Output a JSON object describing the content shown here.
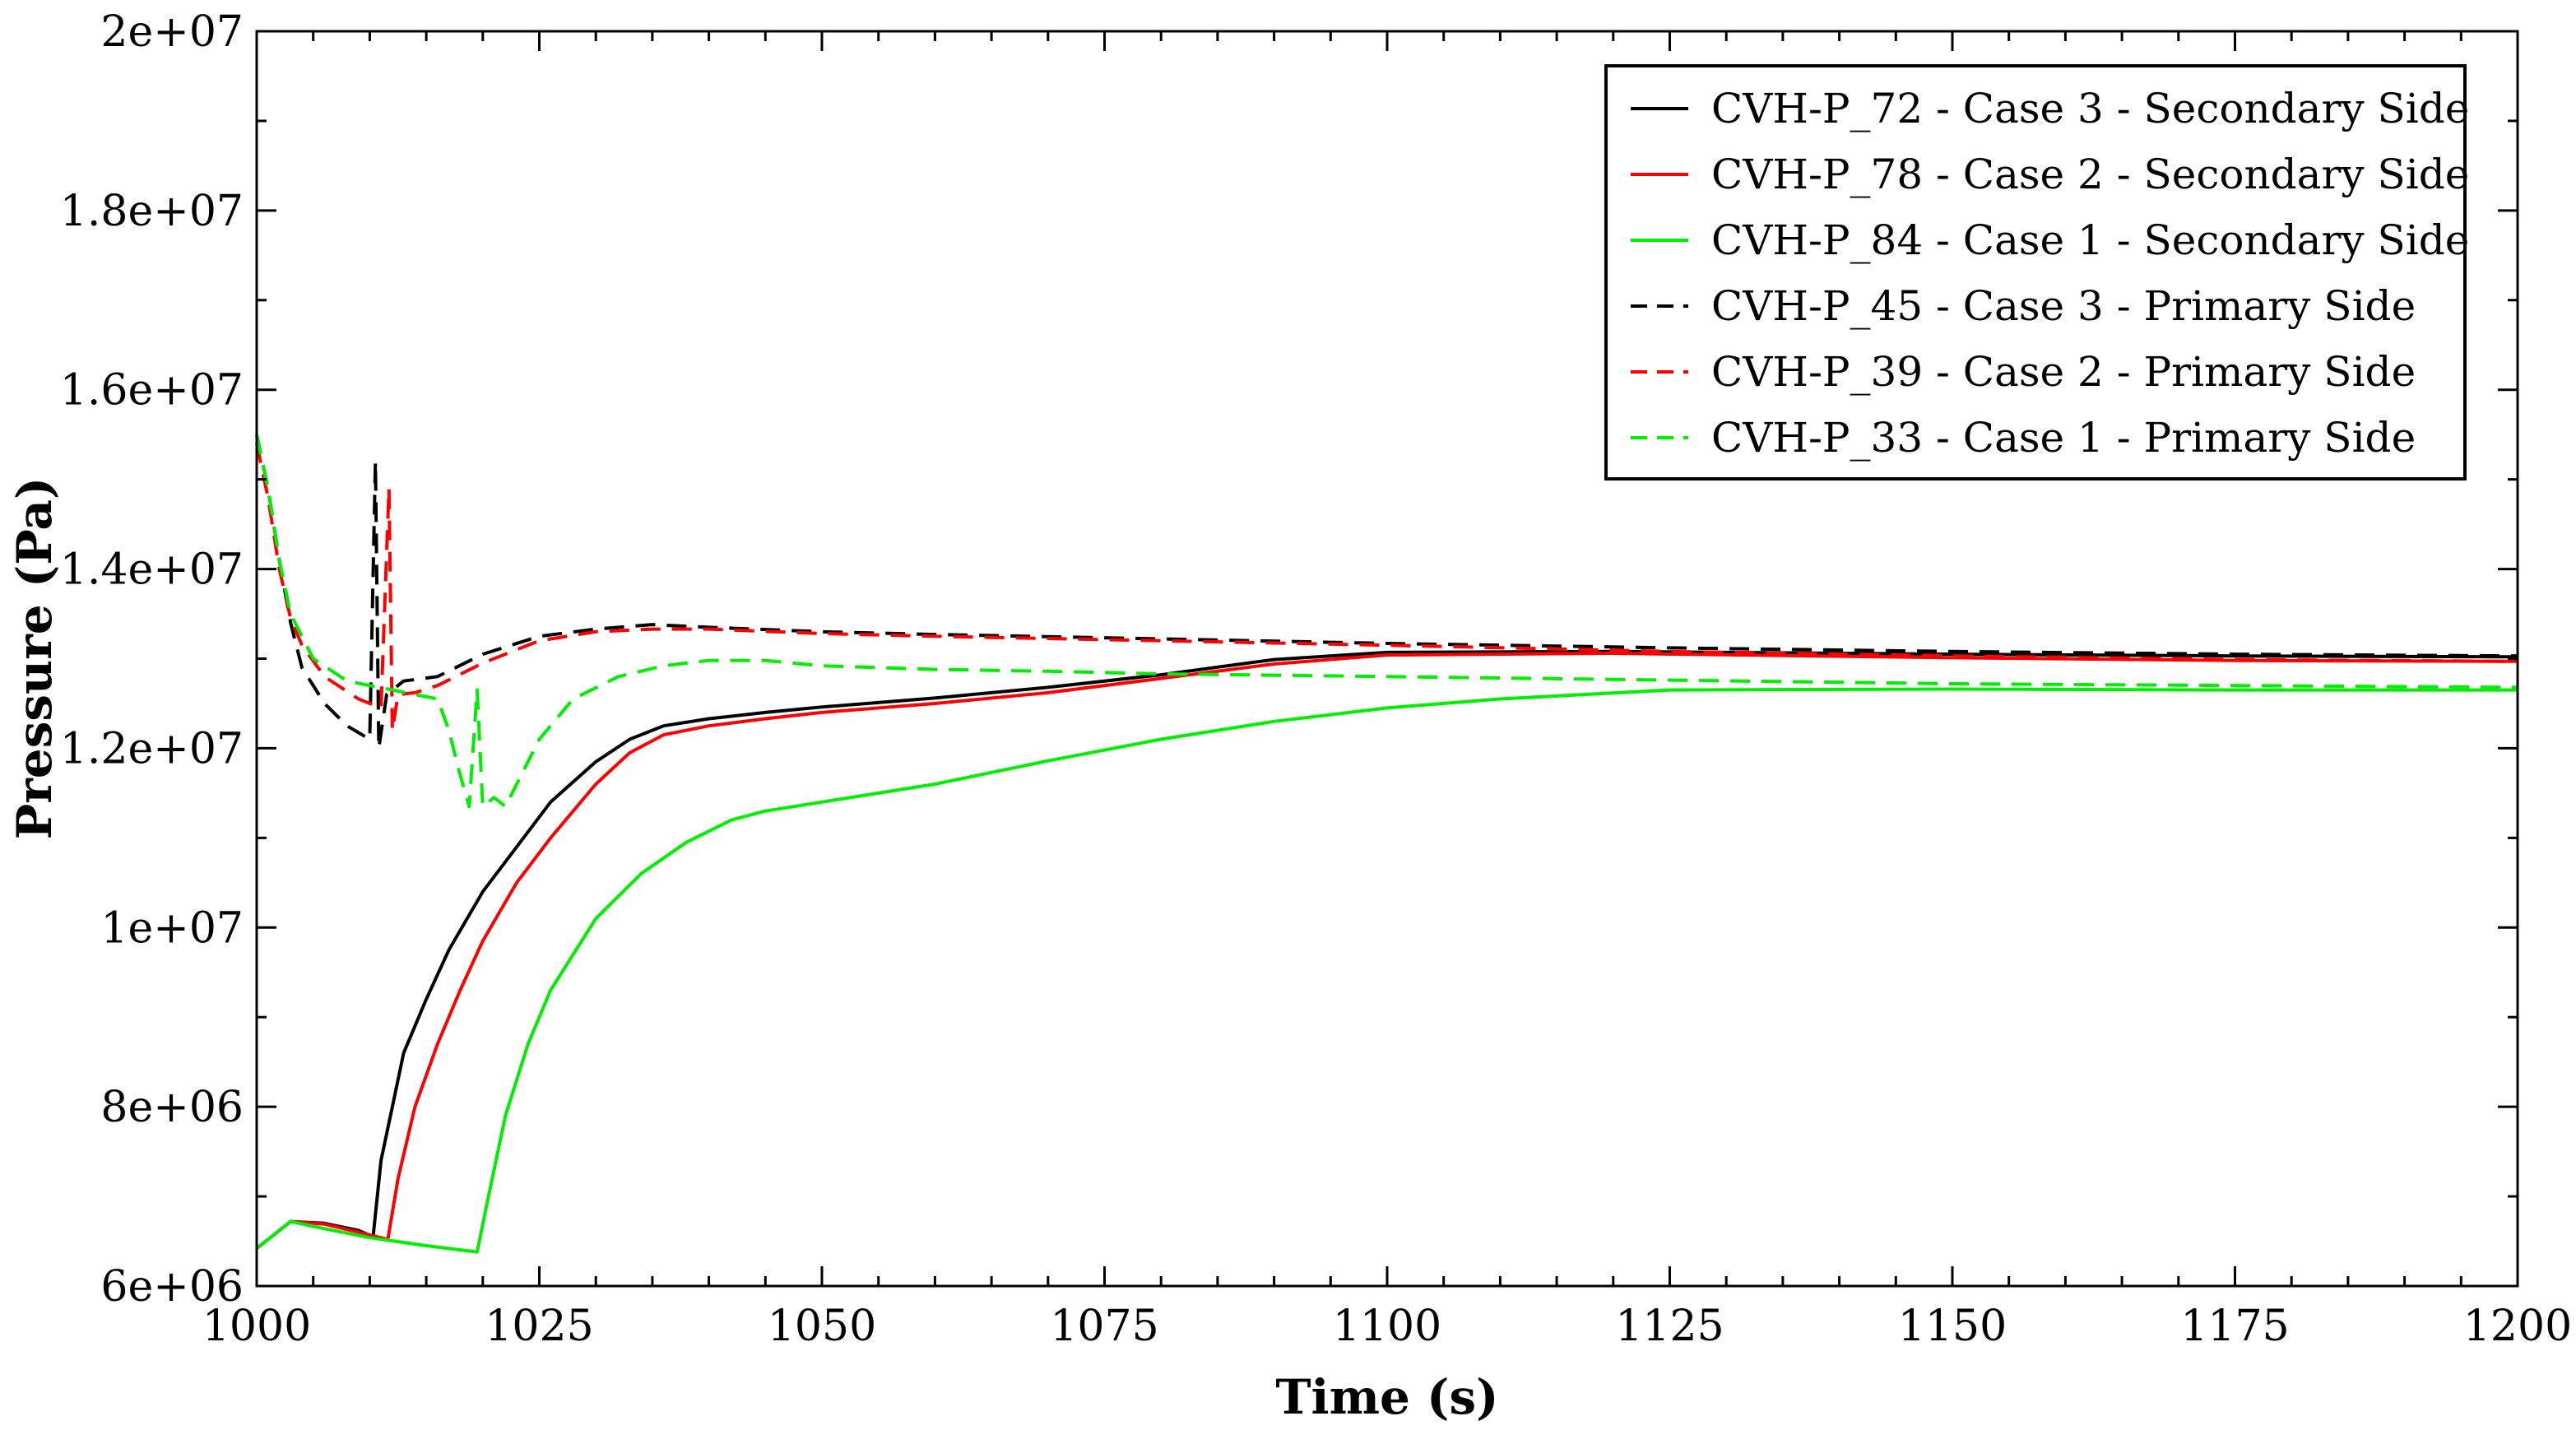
{
  "chart_data": {
    "type": "line",
    "title": "",
    "xlabel": "Time (s)",
    "ylabel": "Pressure (Pa)",
    "xlim": [
      1000,
      1200
    ],
    "ylim": [
      6000000,
      20000000
    ],
    "x_major_ticks": [
      1000,
      1025,
      1050,
      1075,
      1100,
      1125,
      1150,
      1175,
      1200
    ],
    "x_tick_labels": [
      "1000",
      "1025",
      "1050",
      "1075",
      "1100",
      "1125",
      "1150",
      "1175",
      "1200"
    ],
    "y_major_ticks": [
      6000000,
      8000000,
      10000000,
      12000000,
      14000000,
      16000000,
      18000000,
      20000000
    ],
    "y_tick_labels": [
      "6e+06",
      "8e+06",
      "1e+07",
      "1.2e+07",
      "1.4e+07",
      "1.6e+07",
      "1.8e+07",
      "2e+07"
    ],
    "grid": false,
    "legend_position": "top-right",
    "series": [
      {
        "name": "CVH-P_72 - Case 3 - Secondary Side",
        "color": "#000000",
        "dash": "solid",
        "points": [
          [
            1000,
            6420000
          ],
          [
            1003,
            6720000
          ],
          [
            1006,
            6700000
          ],
          [
            1009,
            6620000
          ],
          [
            1010.3,
            6550000
          ],
          [
            1011,
            7400000
          ],
          [
            1012,
            8000000
          ],
          [
            1013,
            8600000
          ],
          [
            1015,
            9200000
          ],
          [
            1017,
            9750000
          ],
          [
            1020,
            10400000
          ],
          [
            1023,
            10900000
          ],
          [
            1026,
            11400000
          ],
          [
            1030,
            11850000
          ],
          [
            1033,
            12100000
          ],
          [
            1036,
            12250000
          ],
          [
            1040,
            12330000
          ],
          [
            1045,
            12400000
          ],
          [
            1050,
            12460000
          ],
          [
            1060,
            12560000
          ],
          [
            1070,
            12680000
          ],
          [
            1080,
            12820000
          ],
          [
            1090,
            12990000
          ],
          [
            1100,
            13070000
          ],
          [
            1120,
            13080000
          ],
          [
            1150,
            13050000
          ],
          [
            1175,
            13030000
          ],
          [
            1200,
            13020000
          ]
        ]
      },
      {
        "name": "CVH-P_78 - Case 2 - Secondary Side",
        "color": "#ff0000",
        "dash": "solid",
        "points": [
          [
            1000,
            6420000
          ],
          [
            1003,
            6720000
          ],
          [
            1006,
            6690000
          ],
          [
            1009,
            6600000
          ],
          [
            1011.6,
            6520000
          ],
          [
            1012.5,
            7200000
          ],
          [
            1014,
            8000000
          ],
          [
            1016,
            8700000
          ],
          [
            1018,
            9300000
          ],
          [
            1020,
            9850000
          ],
          [
            1023,
            10500000
          ],
          [
            1026,
            11000000
          ],
          [
            1030,
            11600000
          ],
          [
            1033,
            11950000
          ],
          [
            1036,
            12150000
          ],
          [
            1040,
            12250000
          ],
          [
            1045,
            12330000
          ],
          [
            1050,
            12400000
          ],
          [
            1060,
            12500000
          ],
          [
            1070,
            12620000
          ],
          [
            1080,
            12780000
          ],
          [
            1090,
            12940000
          ],
          [
            1100,
            13040000
          ],
          [
            1120,
            13060000
          ],
          [
            1150,
            13010000
          ],
          [
            1175,
            12980000
          ],
          [
            1200,
            12970000
          ]
        ]
      },
      {
        "name": "CVH-P_84 - Case 1 - Secondary Side",
        "color": "#00ee00",
        "dash": "solid",
        "points": [
          [
            1000,
            6420000
          ],
          [
            1003,
            6720000
          ],
          [
            1006,
            6640000
          ],
          [
            1010,
            6540000
          ],
          [
            1015,
            6450000
          ],
          [
            1019.5,
            6380000
          ],
          [
            1020.5,
            7000000
          ],
          [
            1022,
            7900000
          ],
          [
            1024,
            8700000
          ],
          [
            1026,
            9300000
          ],
          [
            1030,
            10100000
          ],
          [
            1034,
            10600000
          ],
          [
            1038,
            10950000
          ],
          [
            1042,
            11200000
          ],
          [
            1045,
            11300000
          ],
          [
            1050,
            11400000
          ],
          [
            1055,
            11500000
          ],
          [
            1060,
            11600000
          ],
          [
            1070,
            11860000
          ],
          [
            1080,
            12100000
          ],
          [
            1090,
            12300000
          ],
          [
            1100,
            12450000
          ],
          [
            1110,
            12550000
          ],
          [
            1125,
            12650000
          ],
          [
            1150,
            12660000
          ],
          [
            1175,
            12650000
          ],
          [
            1200,
            12650000
          ]
        ]
      },
      {
        "name": "CVH-P_45 - Case 3 - Primary Side",
        "color": "#000000",
        "dash": "dashed",
        "points": [
          [
            1000,
            15500000
          ],
          [
            1001,
            14900000
          ],
          [
            1002,
            14100000
          ],
          [
            1003,
            13400000
          ],
          [
            1004,
            12900000
          ],
          [
            1006,
            12500000
          ],
          [
            1008,
            12250000
          ],
          [
            1010,
            12100000
          ],
          [
            1010.5,
            15200000
          ],
          [
            1010.8,
            12000000
          ],
          [
            1011.5,
            12600000
          ],
          [
            1013,
            12750000
          ],
          [
            1016,
            12800000
          ],
          [
            1020,
            13050000
          ],
          [
            1025,
            13250000
          ],
          [
            1030,
            13330000
          ],
          [
            1035,
            13380000
          ],
          [
            1040,
            13350000
          ],
          [
            1050,
            13300000
          ],
          [
            1060,
            13270000
          ],
          [
            1080,
            13220000
          ],
          [
            1100,
            13170000
          ],
          [
            1125,
            13120000
          ],
          [
            1150,
            13080000
          ],
          [
            1175,
            13050000
          ],
          [
            1200,
            13030000
          ]
        ]
      },
      {
        "name": "CVH-P_39 - Case 2 - Primary Side",
        "color": "#ff0000",
        "dash": "dashed",
        "points": [
          [
            1000,
            15400000
          ],
          [
            1001,
            14800000
          ],
          [
            1002,
            14000000
          ],
          [
            1003,
            13450000
          ],
          [
            1004,
            13150000
          ],
          [
            1006,
            12800000
          ],
          [
            1009,
            12550000
          ],
          [
            1011,
            12450000
          ],
          [
            1011.7,
            14900000
          ],
          [
            1012,
            12200000
          ],
          [
            1012.5,
            12600000
          ],
          [
            1014,
            12620000
          ],
          [
            1016,
            12700000
          ],
          [
            1020,
            12950000
          ],
          [
            1025,
            13200000
          ],
          [
            1030,
            13300000
          ],
          [
            1035,
            13330000
          ],
          [
            1040,
            13330000
          ],
          [
            1050,
            13280000
          ],
          [
            1060,
            13250000
          ],
          [
            1080,
            13200000
          ],
          [
            1100,
            13150000
          ],
          [
            1125,
            13080000
          ],
          [
            1150,
            13030000
          ],
          [
            1175,
            12990000
          ],
          [
            1200,
            12970000
          ]
        ]
      },
      {
        "name": "CVH-P_33 - Case 1 - Primary Side",
        "color": "#00ee00",
        "dash": "dashed",
        "points": [
          [
            1000,
            15500000
          ],
          [
            1001,
            14900000
          ],
          [
            1002,
            14100000
          ],
          [
            1003,
            13500000
          ],
          [
            1005,
            13000000
          ],
          [
            1008,
            12750000
          ],
          [
            1012,
            12650000
          ],
          [
            1016,
            12550000
          ],
          [
            1017,
            12200000
          ],
          [
            1018,
            11700000
          ],
          [
            1018.8,
            11350000
          ],
          [
            1019.5,
            12650000
          ],
          [
            1020,
            11350000
          ],
          [
            1021,
            11450000
          ],
          [
            1022,
            11350000
          ],
          [
            1023,
            11600000
          ],
          [
            1025,
            12100000
          ],
          [
            1028,
            12550000
          ],
          [
            1032,
            12800000
          ],
          [
            1036,
            12920000
          ],
          [
            1040,
            12980000
          ],
          [
            1045,
            12980000
          ],
          [
            1050,
            12920000
          ],
          [
            1060,
            12880000
          ],
          [
            1070,
            12860000
          ],
          [
            1080,
            12830000
          ],
          [
            1100,
            12800000
          ],
          [
            1125,
            12760000
          ],
          [
            1150,
            12720000
          ],
          [
            1175,
            12700000
          ],
          [
            1200,
            12680000
          ]
        ]
      }
    ]
  }
}
